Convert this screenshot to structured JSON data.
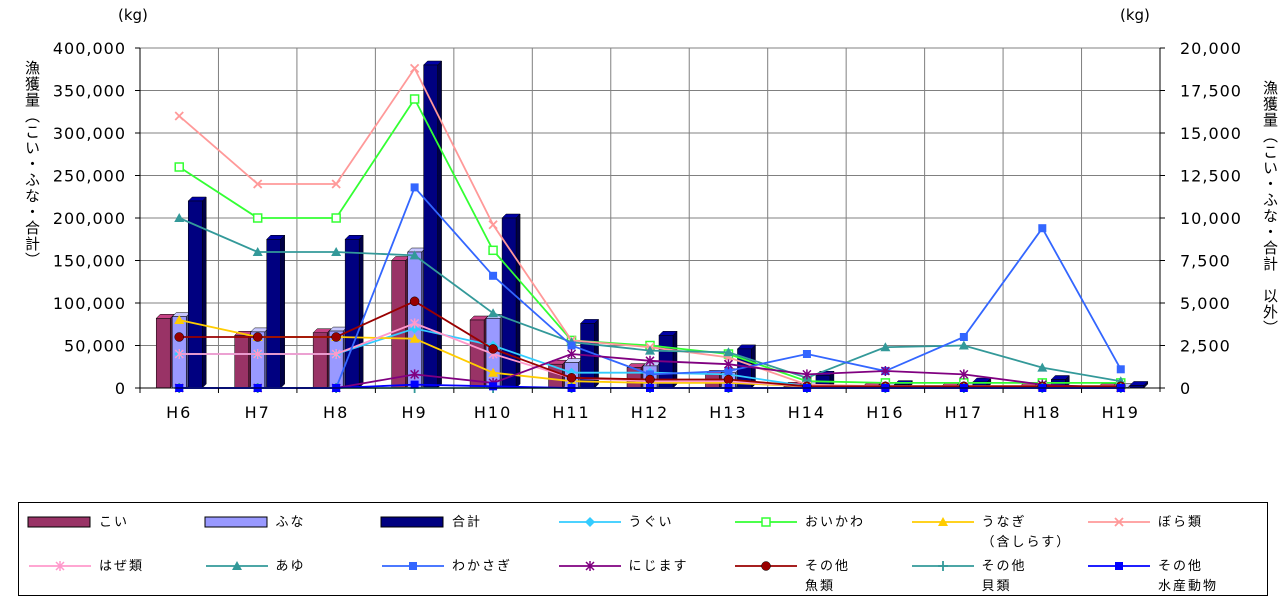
{
  "chart_data": {
    "type": "bar",
    "categories": [
      "H6",
      "H7",
      "H8",
      "H9",
      "H10",
      "H11",
      "H12",
      "H13",
      "H14",
      "H16",
      "H17",
      "H18",
      "H19"
    ],
    "left_axis": {
      "unit": "(kg)",
      "label": "漁獲量（こい・ふな・合計）",
      "ylim": [
        0,
        400000
      ],
      "ticks": [
        "0",
        "50,000",
        "100,000",
        "150,000",
        "200,000",
        "250,000",
        "300,000",
        "350,000",
        "400,000"
      ]
    },
    "right_axis": {
      "unit": "(kg)",
      "label": "漁獲量（こい・ふな・合計　以外）",
      "ylim": [
        0,
        20000
      ],
      "ticks": [
        "0",
        "2,500",
        "5,000",
        "7,500",
        "10,000",
        "12,500",
        "15,000",
        "17,500",
        "20,000"
      ]
    },
    "bar_series": [
      {
        "name": "こい",
        "color": "#993366",
        "values": [
          82000,
          62000,
          65000,
          150000,
          80000,
          28000,
          24000,
          16000,
          2000,
          1000,
          1000,
          1000,
          500
        ]
      },
      {
        "name": "ふな",
        "color": "#9999ff",
        "values": [
          84000,
          66000,
          67000,
          160000,
          82000,
          30000,
          26000,
          18000,
          2500,
          1500,
          1000,
          1000,
          500
        ]
      },
      {
        "name": "合計",
        "color": "#000080",
        "values": [
          220000,
          175000,
          175000,
          380000,
          200000,
          76000,
          62000,
          46000,
          15000,
          4000,
          7000,
          10000,
          3000
        ]
      }
    ],
    "line_series": [
      {
        "name": "うぐい",
        "color": "#33ccff",
        "marker": "diamond",
        "values": [
          2000,
          2000,
          2000,
          3500,
          2500,
          900,
          900,
          800,
          100,
          100,
          100,
          100,
          100
        ]
      },
      {
        "name": "おいかわ",
        "color": "#33ff33",
        "marker": "square-open",
        "values": [
          13000,
          10000,
          10000,
          17000,
          8100,
          2800,
          2500,
          2000,
          400,
          300,
          300,
          300,
          300
        ]
      },
      {
        "name": "うなぎ\n（含しらす）",
        "color": "#ffcc00",
        "marker": "triangle",
        "values": [
          4000,
          3000,
          3000,
          2900,
          900,
          400,
          300,
          300,
          100,
          100,
          100,
          100,
          100
        ]
      },
      {
        "name": "ぼら類",
        "color": "#ff9999",
        "marker": "x",
        "values": [
          16000,
          12000,
          12000,
          18800,
          9600,
          2800,
          2400,
          1800,
          200,
          100,
          100,
          100,
          100
        ]
      },
      {
        "name": "はぜ類",
        "color": "#ff99cc",
        "marker": "star",
        "values": [
          2000,
          2000,
          2000,
          3800,
          2000,
          600,
          400,
          400,
          100,
          100,
          100,
          100,
          100
        ]
      },
      {
        "name": "あゆ",
        "color": "#339999",
        "marker": "triangle",
        "values": [
          10000,
          8000,
          8000,
          7800,
          4400,
          2700,
          2200,
          2100,
          600,
          2400,
          2500,
          1200,
          400
        ]
      },
      {
        "name": "わかさぎ",
        "color": "#3366ff",
        "marker": "square",
        "values": [
          0,
          0,
          0,
          11800,
          6600,
          2500,
          800,
          1000,
          2000,
          1000,
          3000,
          9400,
          1100
        ]
      },
      {
        "name": "にじます",
        "color": "#800080",
        "marker": "star",
        "values": [
          0,
          0,
          0,
          800,
          300,
          2000,
          1600,
          1400,
          800,
          1000,
          800,
          200,
          0
        ]
      },
      {
        "name": "その他\n魚類",
        "color": "#990000",
        "marker": "circle",
        "values": [
          3000,
          3000,
          3000,
          5100,
          2300,
          600,
          500,
          500,
          100,
          100,
          100,
          100,
          100
        ]
      },
      {
        "name": "その他\n貝類",
        "color": "#339999",
        "marker": "plus",
        "values": [
          0,
          0,
          0,
          0,
          0,
          0,
          0,
          0,
          0,
          0,
          0,
          0,
          0
        ]
      },
      {
        "name": "その他\n水産動物",
        "color": "#0000ff",
        "marker": "square",
        "values": [
          0,
          0,
          0,
          200,
          100,
          0,
          0,
          0,
          0,
          0,
          0,
          0,
          0
        ]
      }
    ],
    "grid": true,
    "legend_position": "bottom"
  }
}
